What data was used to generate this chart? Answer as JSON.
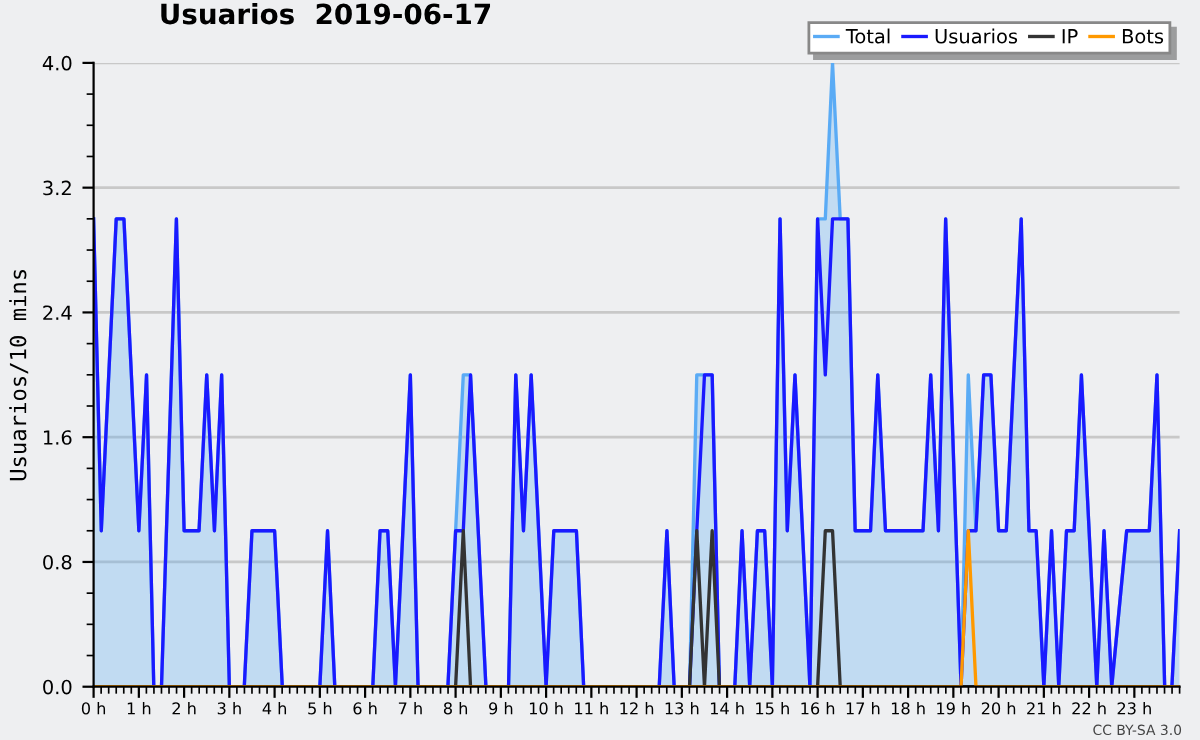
{
  "chart_data": {
    "type": "line",
    "title": "Usuarios  2019-06-17",
    "ylabel": "Usuarios/10 mins",
    "annotations": [
      "CC BY-SA 3.0"
    ],
    "xlim": [
      0,
      24
    ],
    "xticks": [
      {
        "value": 0,
        "label": "0 h"
      },
      {
        "value": 1,
        "label": "1 h"
      },
      {
        "value": 2,
        "label": "2 h"
      },
      {
        "value": 3,
        "label": "3 h"
      },
      {
        "value": 4,
        "label": "4 h"
      },
      {
        "value": 5,
        "label": "5 h"
      },
      {
        "value": 6,
        "label": "6 h"
      },
      {
        "value": 7,
        "label": "7 h"
      },
      {
        "value": 8,
        "label": "8 h"
      },
      {
        "value": 9,
        "label": "9 h"
      },
      {
        "value": 10,
        "label": "10 h"
      },
      {
        "value": 11,
        "label": "11 h"
      },
      {
        "value": 12,
        "label": "12 h"
      },
      {
        "value": 13,
        "label": "13 h"
      },
      {
        "value": 14,
        "label": "14 h"
      },
      {
        "value": 15,
        "label": "15 h"
      },
      {
        "value": 16,
        "label": "16 h"
      },
      {
        "value": 17,
        "label": "17 h"
      },
      {
        "value": 18,
        "label": "18 h"
      },
      {
        "value": 19,
        "label": "19 h"
      },
      {
        "value": 20,
        "label": "20 h"
      },
      {
        "value": 21,
        "label": "21 h"
      },
      {
        "value": 22,
        "label": "22 h"
      },
      {
        "value": 23,
        "label": "23 h"
      }
    ],
    "ylim": [
      0,
      4
    ],
    "yticks": [
      {
        "value": 0,
        "label": "0.0"
      },
      0.8,
      1.6,
      2.4,
      3.2,
      {
        "value": 4,
        "label": "4.0"
      }
    ],
    "grid": "y",
    "legend": "top right",
    "line_style": "solid",
    "marker": "none",
    "series": [
      {
        "name": "Total",
        "type": "area",
        "color": "#5aabf5",
        "x": [
          0,
          0.17,
          0.5,
          0.67,
          1.0,
          1.17,
          1.33,
          1.5,
          1.83,
          2.0,
          2.33,
          2.5,
          2.67,
          2.83,
          3.0,
          3.33,
          3.5,
          4.0,
          4.17,
          5.0,
          5.17,
          5.33,
          6.17,
          6.33,
          6.5,
          6.67,
          7.0,
          7.17,
          7.83,
          8.0,
          8.17,
          8.33,
          8.5,
          8.67,
          9.17,
          9.33,
          9.5,
          9.67,
          10.0,
          10.17,
          10.67,
          10.83,
          12.5,
          12.67,
          12.83,
          13.17,
          13.33,
          13.5,
          13.67,
          13.83,
          14.17,
          14.33,
          14.5,
          14.67,
          14.83,
          15.0,
          15.17,
          15.33,
          15.5,
          15.83,
          16.0,
          16.17,
          16.33,
          16.5,
          16.67,
          16.83,
          17.17,
          17.33,
          17.5,
          18.33,
          18.5,
          18.67,
          18.83,
          19.17,
          19.33,
          19.5,
          19.67,
          19.83,
          20.0,
          20.17,
          20.5,
          20.67,
          20.83,
          21.0,
          21.17,
          21.33,
          21.5,
          21.67,
          21.83,
          22.17,
          22.33,
          22.5,
          22.83,
          23.33,
          23.5,
          23.67,
          23.83,
          24.0
        ],
        "values": [
          3,
          1,
          3,
          3,
          1,
          2,
          0,
          0,
          3,
          1,
          1,
          2,
          1,
          2,
          0,
          0,
          1,
          1,
          0,
          0,
          1,
          0,
          0,
          1,
          1,
          0,
          2,
          0,
          0,
          1,
          2,
          2,
          1,
          0,
          0,
          2,
          1,
          2,
          0,
          1,
          1,
          0,
          0,
          1,
          0,
          0,
          2,
          2,
          2,
          0,
          0,
          1,
          0,
          1,
          1,
          0,
          3,
          1,
          2,
          0,
          3,
          3,
          4,
          3,
          3,
          1,
          1,
          2,
          1,
          1,
          2,
          1,
          3,
          0,
          2,
          1,
          2,
          2,
          1,
          1,
          3,
          1,
          1,
          0,
          1,
          0,
          1,
          1,
          2,
          0,
          1,
          0,
          1,
          1,
          2,
          0,
          0,
          1
        ]
      },
      {
        "name": "Usuarios",
        "color": "#1a1aff",
        "x": [
          0,
          0.17,
          0.5,
          0.67,
          1.0,
          1.17,
          1.33,
          1.5,
          1.83,
          2.0,
          2.33,
          2.5,
          2.67,
          2.83,
          3.0,
          3.33,
          3.5,
          4.0,
          4.17,
          5.0,
          5.17,
          5.33,
          6.17,
          6.33,
          6.5,
          6.67,
          7.0,
          7.17,
          7.83,
          8.0,
          8.17,
          8.33,
          8.5,
          8.67,
          9.17,
          9.33,
          9.5,
          9.67,
          10.0,
          10.17,
          10.67,
          10.83,
          12.5,
          12.67,
          12.83,
          13.17,
          13.33,
          13.5,
          13.67,
          13.83,
          14.17,
          14.33,
          14.5,
          14.67,
          14.83,
          15.0,
          15.17,
          15.33,
          15.5,
          15.83,
          16.0,
          16.17,
          16.33,
          16.5,
          16.67,
          16.83,
          17.17,
          17.33,
          17.5,
          18.33,
          18.5,
          18.67,
          18.83,
          19.17,
          19.33,
          19.5,
          19.67,
          19.83,
          20.0,
          20.17,
          20.5,
          20.67,
          20.83,
          21.0,
          21.17,
          21.33,
          21.5,
          21.67,
          21.83,
          22.17,
          22.33,
          22.5,
          22.83,
          23.33,
          23.5,
          23.67,
          23.83,
          24.0
        ],
        "values": [
          3,
          1,
          3,
          3,
          1,
          2,
          0,
          0,
          3,
          1,
          1,
          2,
          1,
          2,
          0,
          0,
          1,
          1,
          0,
          0,
          1,
          0,
          0,
          1,
          1,
          0,
          2,
          0,
          0,
          1,
          1,
          2,
          1,
          0,
          0,
          2,
          1,
          2,
          0,
          1,
          1,
          0,
          0,
          1,
          0,
          0,
          1,
          2,
          2,
          0,
          0,
          1,
          0,
          1,
          1,
          0,
          3,
          1,
          2,
          0,
          3,
          2,
          3,
          3,
          3,
          1,
          1,
          2,
          1,
          1,
          2,
          1,
          3,
          0,
          1,
          1,
          2,
          2,
          1,
          1,
          3,
          1,
          1,
          0,
          1,
          0,
          1,
          1,
          2,
          0,
          1,
          0,
          1,
          1,
          2,
          0,
          0,
          1
        ]
      },
      {
        "name": "IP",
        "color": "#333333",
        "x": [
          0,
          8.0,
          8.17,
          8.33,
          13.17,
          13.33,
          13.5,
          13.67,
          13.83,
          16.0,
          16.17,
          16.33,
          16.5,
          24.0
        ],
        "values": [
          0,
          0,
          1,
          0,
          0,
          1,
          0,
          1,
          0,
          0,
          1,
          1,
          0,
          0
        ]
      },
      {
        "name": "Bots",
        "color": "#ff9900",
        "x": [
          0,
          19.17,
          19.33,
          19.5,
          24.0
        ],
        "values": [
          0,
          0,
          1,
          0,
          0
        ]
      }
    ]
  }
}
